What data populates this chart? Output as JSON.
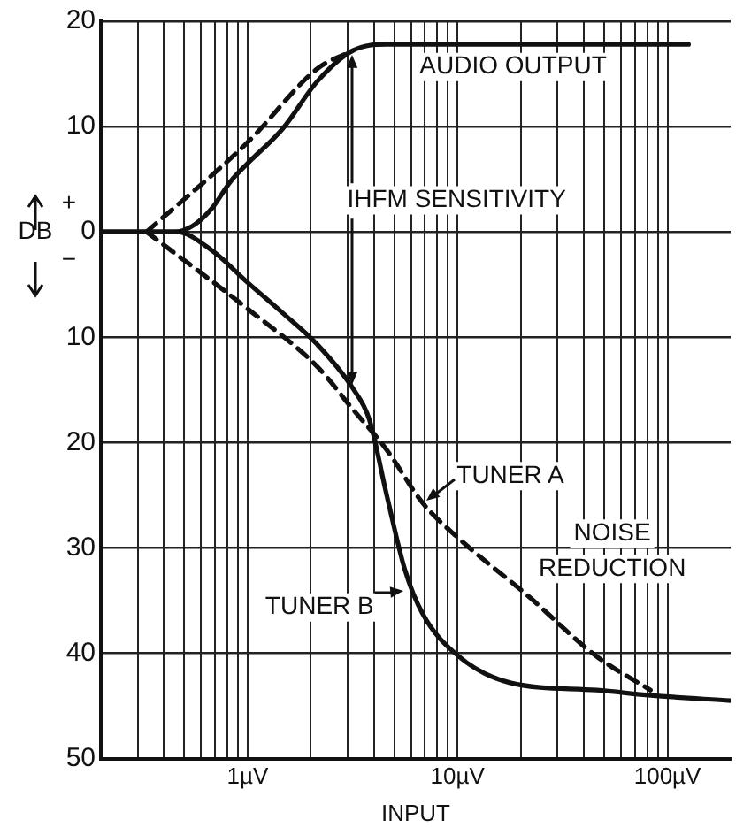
{
  "chart_data": {
    "type": "line",
    "xlabel": "INPUT",
    "ylabel": "DB",
    "log": "x",
    "grid": true,
    "legend": false,
    "marker": "none",
    "xlim": [
      0.2,
      200
    ],
    "ylim": [
      -50,
      20
    ],
    "xticks": [
      {
        "value": 0.3,
        "label": null
      },
      {
        "value": 0.4,
        "label": null
      },
      {
        "value": 0.5,
        "label": null
      },
      {
        "value": 0.6,
        "label": null
      },
      {
        "value": 0.7,
        "label": null
      },
      {
        "value": 0.8,
        "label": null
      },
      {
        "value": 0.9,
        "label": null
      },
      {
        "value": 1,
        "label": "1µV"
      },
      {
        "value": 2,
        "label": null
      },
      {
        "value": 3,
        "label": null
      },
      {
        "value": 4,
        "label": null
      },
      {
        "value": 5,
        "label": null
      },
      {
        "value": 6,
        "label": null
      },
      {
        "value": 7,
        "label": null
      },
      {
        "value": 8,
        "label": null
      },
      {
        "value": 9,
        "label": null
      },
      {
        "value": 10,
        "label": "10µV"
      },
      {
        "value": 20,
        "label": null
      },
      {
        "value": 30,
        "label": null
      },
      {
        "value": 40,
        "label": null
      },
      {
        "value": 50,
        "label": null
      },
      {
        "value": 60,
        "label": null
      },
      {
        "value": 70,
        "label": null
      },
      {
        "value": 80,
        "label": null
      },
      {
        "value": 90,
        "label": null
      },
      {
        "value": 100,
        "label": "100µV"
      }
    ],
    "yticks": [
      20,
      10,
      0,
      {
        "value": -10,
        "label": "10"
      },
      {
        "value": -20,
        "label": "20"
      },
      {
        "value": -30,
        "label": "30"
      },
      {
        "value": -40,
        "label": "40"
      },
      {
        "value": -50,
        "label": "50"
      }
    ],
    "series": [
      {
        "color": "#111111",
        "line_style": "solid",
        "x": [
          0.2,
          0.45,
          0.56,
          0.68,
          0.83,
          1,
          1.47,
          2.15,
          3.16,
          4.6,
          10,
          126
        ],
        "values": [
          0,
          0,
          0.7,
          2.3,
          4.8,
          6.5,
          9.8,
          14.3,
          17.2,
          17.8,
          17.8,
          17.8
        ]
      },
      {
        "color": "#111111",
        "line_style": "dashed",
        "x": [
          0.33,
          1,
          2.15,
          3.16
        ],
        "values": [
          0,
          8.5,
          15.5,
          17.2
        ]
      },
      {
        "color": "#111111",
        "line_style": "dashed",
        "x": [
          0.33,
          1,
          2.15,
          3.16,
          4.6,
          6.8,
          10,
          21.5,
          46,
          83
        ],
        "values": [
          0,
          -7.3,
          -12.8,
          -16.8,
          -20.7,
          -25.7,
          -29,
          -34.5,
          -40.3,
          -43.5
        ]
      },
      {
        "color": "#111111",
        "line_style": "solid",
        "x": [
          0.2,
          0.46,
          0.68,
          1,
          1.47,
          2.15,
          3.16,
          3.8,
          4.6,
          5.6,
          6.8,
          10,
          17.8,
          46,
          83,
          200
        ],
        "values": [
          0,
          0,
          -1.8,
          -4.8,
          -7.7,
          -10.7,
          -14.8,
          -17.8,
          -25,
          -32,
          -36.2,
          -40.2,
          -42.8,
          -43.5,
          -44,
          -44.5
        ]
      }
    ],
    "annotations": [
      "AUDIO OUTPUT",
      {
        "text": "IHFM SENSITIVITY",
        "x": 3.16,
        "y": -14.8
      },
      "TUNER A",
      "TUNER B",
      "NOISE REDUCTION",
      "+",
      "−"
    ]
  }
}
